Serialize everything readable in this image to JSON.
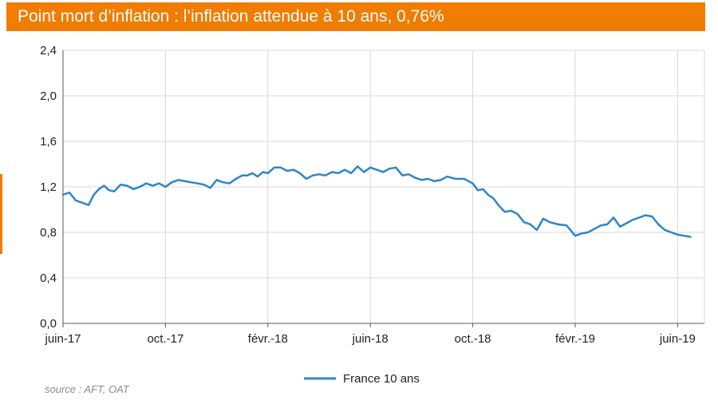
{
  "title": "Point mort d’inflation : l’inflation attendue à  10 ans, 0,76%",
  "source": "source : AFT, OAT",
  "colors": {
    "banner": "#f07c00",
    "series": "#2e86c8",
    "grid": "#d9d9d9",
    "axis": "#595959"
  },
  "chart_data": {
    "type": "line",
    "title": "Point mort d’inflation : l’inflation attendue à  10 ans, 0,76%",
    "xlabel": "",
    "ylabel": "",
    "x_range": [
      "2017-06",
      "2019-06"
    ],
    "ylim": [
      0,
      2.4
    ],
    "y_ticks": [
      "0,0",
      "0,4",
      "0,8",
      "1,2",
      "1,6",
      "2,0",
      "2,4"
    ],
    "x_ticks": [
      "juin-17",
      "oct.-17",
      "févr.-18",
      "juin-18",
      "oct.-18",
      "févr.-19",
      "juin-19"
    ],
    "grid": true,
    "legend_position": "bottom",
    "series": [
      {
        "name": "France 10 ans",
        "color": "#2e86c8",
        "points": [
          [
            "2017-06",
            1.13
          ],
          [
            "2017-06",
            1.15
          ],
          [
            "2017-06",
            1.08
          ],
          [
            "2017-06",
            1.06
          ],
          [
            "2017-07",
            1.04
          ],
          [
            "2017-07",
            1.13
          ],
          [
            "2017-07",
            1.18
          ],
          [
            "2017-07",
            1.21
          ],
          [
            "2017-07",
            1.17
          ],
          [
            "2017-08",
            1.16
          ],
          [
            "2017-08",
            1.22
          ],
          [
            "2017-08",
            1.21
          ],
          [
            "2017-08",
            1.18
          ],
          [
            "2017-09",
            1.2
          ],
          [
            "2017-09",
            1.23
          ],
          [
            "2017-09",
            1.21
          ],
          [
            "2017-09",
            1.23
          ],
          [
            "2017-10",
            1.2
          ],
          [
            "2017-10",
            1.24
          ],
          [
            "2017-10",
            1.26
          ],
          [
            "2017-10",
            1.25
          ],
          [
            "2017-11",
            1.24
          ],
          [
            "2017-11",
            1.23
          ],
          [
            "2017-11",
            1.22
          ],
          [
            "2017-11",
            1.19
          ],
          [
            "2017-12",
            1.26
          ],
          [
            "2017-12",
            1.24
          ],
          [
            "2017-12",
            1.23
          ],
          [
            "2017-12",
            1.27
          ],
          [
            "2018-01",
            1.3
          ],
          [
            "2018-01",
            1.3
          ],
          [
            "2018-01",
            1.32
          ],
          [
            "2018-01",
            1.29
          ],
          [
            "2018-01",
            1.33
          ],
          [
            "2018-02",
            1.32
          ],
          [
            "2018-02",
            1.37
          ],
          [
            "2018-02",
            1.37
          ],
          [
            "2018-02",
            1.34
          ],
          [
            "2018-03",
            1.35
          ],
          [
            "2018-03",
            1.32
          ],
          [
            "2018-03",
            1.27
          ],
          [
            "2018-03",
            1.3
          ],
          [
            "2018-04",
            1.31
          ],
          [
            "2018-04",
            1.3
          ],
          [
            "2018-04",
            1.33
          ],
          [
            "2018-04",
            1.32
          ],
          [
            "2018-05",
            1.35
          ],
          [
            "2018-05",
            1.32
          ],
          [
            "2018-05",
            1.38
          ],
          [
            "2018-05",
            1.33
          ],
          [
            "2018-06",
            1.37
          ],
          [
            "2018-06",
            1.35
          ],
          [
            "2018-06",
            1.33
          ],
          [
            "2018-06",
            1.36
          ],
          [
            "2018-07",
            1.37
          ],
          [
            "2018-07",
            1.3
          ],
          [
            "2018-07",
            1.31
          ],
          [
            "2018-07",
            1.28
          ],
          [
            "2018-08",
            1.26
          ],
          [
            "2018-08",
            1.27
          ],
          [
            "2018-08",
            1.25
          ],
          [
            "2018-08",
            1.26
          ],
          [
            "2018-09",
            1.29
          ],
          [
            "2018-09",
            1.27
          ],
          [
            "2018-09",
            1.27
          ],
          [
            "2018-10",
            1.23
          ],
          [
            "2018-10",
            1.17
          ],
          [
            "2018-10",
            1.18
          ],
          [
            "2018-10",
            1.13
          ],
          [
            "2018-10",
            1.1
          ],
          [
            "2018-11",
            1.04
          ],
          [
            "2018-11",
            0.98
          ],
          [
            "2018-11",
            0.99
          ],
          [
            "2018-11",
            0.96
          ],
          [
            "2018-12",
            0.89
          ],
          [
            "2018-12",
            0.87
          ],
          [
            "2018-12",
            0.82
          ],
          [
            "2018-12",
            0.92
          ],
          [
            "2019-01",
            0.89
          ],
          [
            "2019-01",
            0.87
          ],
          [
            "2019-01",
            0.86
          ],
          [
            "2019-02",
            0.77
          ],
          [
            "2019-02",
            0.79
          ],
          [
            "2019-02",
            0.8
          ],
          [
            "2019-02",
            0.83
          ],
          [
            "2019-03",
            0.86
          ],
          [
            "2019-03",
            0.87
          ],
          [
            "2019-03",
            0.93
          ],
          [
            "2019-03",
            0.85
          ],
          [
            "2019-04",
            0.88
          ],
          [
            "2019-04",
            0.91
          ],
          [
            "2019-04",
            0.93
          ],
          [
            "2019-04",
            0.95
          ],
          [
            "2019-05",
            0.94
          ],
          [
            "2019-05",
            0.87
          ],
          [
            "2019-05",
            0.82
          ],
          [
            "2019-05",
            0.8
          ],
          [
            "2019-06",
            0.78
          ],
          [
            "2019-06",
            0.76
          ]
        ]
      }
    ]
  }
}
